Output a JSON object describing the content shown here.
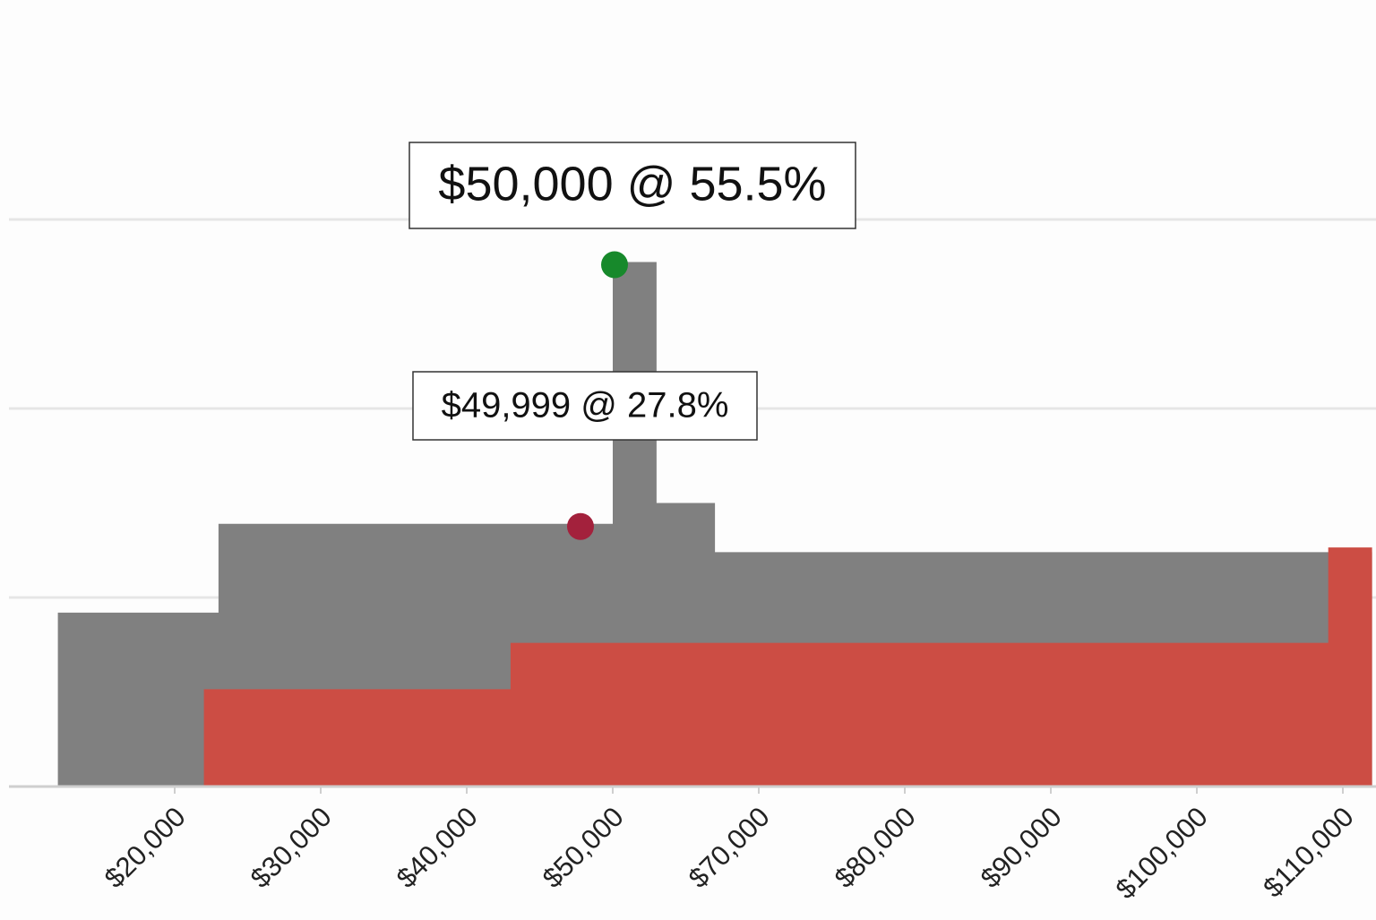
{
  "chart_data": {
    "type": "step-area",
    "xlim": [
      8000,
      112000
    ],
    "xticks": [
      {
        "value": 20000,
        "label": "$20,000"
      },
      {
        "value": 30000,
        "label": "$30,000"
      },
      {
        "value": 40000,
        "label": "$40,000"
      },
      {
        "value": 50000,
        "label": "$50,000"
      },
      {
        "value": 70000,
        "label": "$70,000"
      },
      {
        "value": 80000,
        "label": "$80,000"
      },
      {
        "value": 90000,
        "label": "$90,000"
      },
      {
        "value": 100000,
        "label": "$100,000"
      },
      {
        "value": 110000,
        "label": "$110,000"
      }
    ],
    "ylim": [
      0,
      60
    ],
    "yticks": [
      0,
      20,
      40,
      60
    ],
    "grid": true,
    "series": [
      {
        "color": "#808080",
        "x": [
          12000,
          23000,
          50000,
          56000,
          64000
        ],
        "values": [
          18.4,
          27.8,
          55.5,
          30,
          24.8
        ]
      },
      {
        "color": "#cc4d44",
        "x": [
          22000,
          43000,
          109000
        ],
        "values": [
          10.3,
          15.2,
          25.3
        ]
      }
    ],
    "annotations": [
      {
        "text": "$50,000 @ 55.5%",
        "x": 50000,
        "y": 55.5,
        "color": "#17892b"
      },
      {
        "text": "$49,999 @ 27.8%",
        "x": 49999,
        "y": 27.8,
        "color": "#a3213c"
      }
    ]
  }
}
